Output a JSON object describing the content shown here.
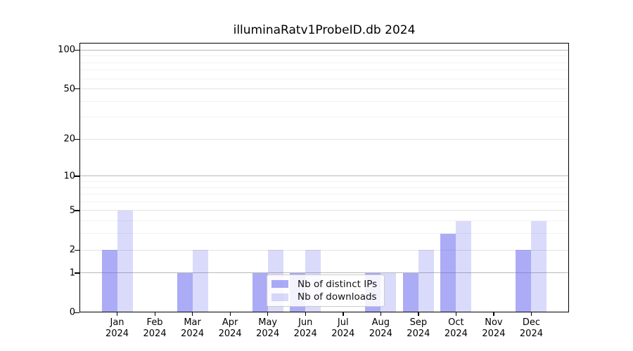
{
  "figure": {
    "title": "illuminaRatv1ProbeID.db 2024"
  },
  "legend": {
    "items": [
      {
        "label": "Nb of distinct IPs",
        "color": "rgba(102,102,238,0.55)"
      },
      {
        "label": "Nb of downloads",
        "color": "rgba(102,102,238,0.24)"
      }
    ]
  },
  "chart_data": {
    "type": "bar",
    "title": "illuminaRatv1ProbeID.db 2024",
    "categories": [
      "Jan 2024",
      "Feb 2024",
      "Mar 2024",
      "Apr 2024",
      "May 2024",
      "Jun 2024",
      "Jul 2024",
      "Aug 2024",
      "Sep 2024",
      "Oct 2024",
      "Nov 2024",
      "Dec 2024"
    ],
    "x_months": [
      "Jan",
      "Feb",
      "Mar",
      "Apr",
      "May",
      "Jun",
      "Jul",
      "Aug",
      "Sep",
      "Oct",
      "Nov",
      "Dec"
    ],
    "x_year": "2024",
    "series": [
      {
        "name": "Nb of distinct IPs",
        "values": [
          2,
          0,
          1,
          0,
          1,
          1,
          0,
          1,
          1,
          3,
          0,
          2
        ],
        "color": "rgba(102,102,238,0.55)"
      },
      {
        "name": "Nb of downloads",
        "values": [
          5,
          0,
          2,
          0,
          2,
          2,
          0,
          1,
          2,
          4,
          0,
          4
        ],
        "color": "rgba(102,102,238,0.24)"
      }
    ],
    "xlabel": "",
    "ylabel": "",
    "yscale": "log1p",
    "ylim": [
      0,
      113.5
    ],
    "y_tick_values": [
      0,
      1,
      2,
      5,
      10,
      20,
      50,
      100
    ],
    "y_tick_labels": [
      "0",
      "1",
      "2",
      "5",
      "10",
      "20",
      "50",
      "100"
    ],
    "grid": {
      "on": true,
      "strong_values": [
        1,
        10,
        100
      ],
      "mid_values": [
        2,
        5,
        20,
        50
      ],
      "minor_values": [
        3,
        4,
        6,
        7,
        8,
        9,
        30,
        40,
        60,
        70,
        80,
        90
      ],
      "strong_color": "#b8b8b8",
      "mid_color": "#e3e3e3",
      "minor_color": "#f1f1f1"
    },
    "legend_position": "lower-center-overlapping-plot",
    "background_color": "#ffffff",
    "spine_color": "#000000"
  }
}
